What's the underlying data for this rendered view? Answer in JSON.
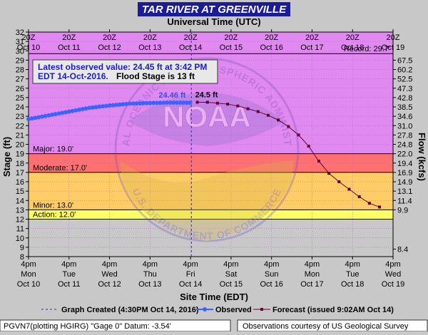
{
  "page": {
    "title": "TAR RIVER AT GREENVILLE",
    "top_axis_title": "Universal Time (UTC)",
    "bottom_axis_title": "Site Time (EDT)",
    "y_left_label": "Stage (ft)",
    "y_right_label": "Flow (kcfs)",
    "info_line1": "Latest observed value: 24.45 ft at 3:42 PM",
    "info_line2a": "EDT 14-Oct-2016.",
    "info_line2b": "Flood Stage is 13 ft",
    "record_label": "Record: 29.7'",
    "obs_label": "24.46 ft",
    "fc_label": "24.5 ft",
    "watermark_circle": "NATIONAL OCEANIC AND ATMOSPHERIC ADMINISTRATION",
    "watermark_noaa": "NOAA",
    "watermark_dept": "U.S. DEPARTMENT OF COMMERCE",
    "footer_left": "PGVN7(plotting HGIRG) \"Gage 0\" Datum: -3.54'",
    "footer_right": "Observations courtesy of US Geological Survey"
  },
  "legend": {
    "created": "Graph Created (4:30PM Oct 14, 2016)",
    "observed": "Observed",
    "forecast": "Forecast (issued 9:02AM Oct 14)"
  },
  "colors": {
    "background": "#c8c8c8",
    "title_bg": "#1c1c96",
    "plot_bg": "#e089f0",
    "major": "#ce87d2",
    "moderate": "#ff7070",
    "minor": "#ffcc66",
    "action": "#ffff66",
    "observed": "#3b63ff",
    "forecast": "#660033"
  },
  "chart_data": {
    "type": "line",
    "ylim": [
      8,
      32
    ],
    "y_ticks": [
      8,
      9,
      10,
      11,
      12,
      13,
      14,
      15,
      16,
      17,
      18,
      19,
      20,
      21,
      22,
      23,
      24,
      25,
      26,
      27,
      28,
      29,
      30,
      31,
      32
    ],
    "x_range_days": [
      "2016-10-10 16:00",
      "2016-10-19 16:00"
    ],
    "x_ticks_local": [
      {
        "t": "2016-10-10 16:00",
        "l1": "4pm",
        "l2": "Mon",
        "l3": "Oct 10"
      },
      {
        "t": "2016-10-11 16:00",
        "l1": "4pm",
        "l2": "Tue",
        "l3": "Oct 11"
      },
      {
        "t": "2016-10-12 16:00",
        "l1": "4pm",
        "l2": "Wed",
        "l3": "Oct 12"
      },
      {
        "t": "2016-10-13 16:00",
        "l1": "4pm",
        "l2": "Thu",
        "l3": "Oct 13"
      },
      {
        "t": "2016-10-14 16:00",
        "l1": "4pm",
        "l2": "Fri",
        "l3": "Oct 14"
      },
      {
        "t": "2016-10-15 16:00",
        "l1": "4pm",
        "l2": "Sat",
        "l3": "Oct 15"
      },
      {
        "t": "2016-10-16 16:00",
        "l1": "4pm",
        "l2": "Sun",
        "l3": "Oct 16"
      },
      {
        "t": "2016-10-17 16:00",
        "l1": "4pm",
        "l2": "Mon",
        "l3": "Oct 17"
      },
      {
        "t": "2016-10-18 16:00",
        "l1": "4pm",
        "l2": "Tue",
        "l3": "Oct 18"
      },
      {
        "t": "2016-10-19 16:00",
        "l1": "4pm",
        "l2": "Wed",
        "l3": "Oct 19"
      }
    ],
    "x_ticks_utc": [
      {
        "t": "2016-10-10 16:00",
        "l1": "20Z",
        "l2": "Oct 10"
      },
      {
        "t": "2016-10-11 16:00",
        "l1": "20Z",
        "l2": "Oct 11"
      },
      {
        "t": "2016-10-12 16:00",
        "l1": "20Z",
        "l2": "Oct 12"
      },
      {
        "t": "2016-10-13 16:00",
        "l1": "20Z",
        "l2": "Oct 13"
      },
      {
        "t": "2016-10-14 16:00",
        "l1": "20Z",
        "l2": "Oct 14"
      },
      {
        "t": "2016-10-15 16:00",
        "l1": "20Z",
        "l2": "Oct 15"
      },
      {
        "t": "2016-10-16 16:00",
        "l1": "20Z",
        "l2": "Oct 16"
      },
      {
        "t": "2016-10-17 16:00",
        "l1": "20Z",
        "l2": "Oct 17"
      },
      {
        "t": "2016-10-18 16:00",
        "l1": "20Z",
        "l2": "Oct 18"
      },
      {
        "t": "2016-10-19 16:00",
        "l1": "20Z",
        "l2": "Oct 19"
      }
    ],
    "flow_ticks": [
      {
        "stage": 8.8,
        "label": "8.4"
      },
      {
        "stage": 13,
        "label": "9.9"
      },
      {
        "stage": 14,
        "label": "11.4"
      },
      {
        "stage": 15,
        "label": "13.1"
      },
      {
        "stage": 16,
        "label": "14.9"
      },
      {
        "stage": 17,
        "label": "16.9"
      },
      {
        "stage": 18,
        "label": "19.4"
      },
      {
        "stage": 19,
        "label": "22.0"
      },
      {
        "stage": 20,
        "label": "24.8"
      },
      {
        "stage": 21,
        "label": "27.8"
      },
      {
        "stage": 22,
        "label": "31.0"
      },
      {
        "stage": 23,
        "label": "34.6"
      },
      {
        "stage": 24,
        "label": "38.5"
      },
      {
        "stage": 25,
        "label": "42.8"
      },
      {
        "stage": 26,
        "label": "47.3"
      },
      {
        "stage": 27,
        "label": "52.5"
      },
      {
        "stage": 28,
        "label": "60.2"
      },
      {
        "stage": 29,
        "label": "67.5"
      }
    ],
    "flood_categories": [
      {
        "name": "Action",
        "label": "Action: 12.0'",
        "from": 12,
        "to": 13
      },
      {
        "name": "Minor",
        "label": "Minor: 13.0'",
        "from": 13,
        "to": 17
      },
      {
        "name": "Moderate",
        "label": "Moderate: 17.0'",
        "from": 17,
        "to": 19
      },
      {
        "name": "Major",
        "label": "Major: 19.0'",
        "from": 19,
        "to": 32
      }
    ],
    "record_stage": 29.7,
    "graph_created": "2016-10-14 16:30",
    "observed": {
      "x": [
        "2016-10-10 16:00",
        "2016-10-11 04:00",
        "2016-10-11 16:00",
        "2016-10-12 04:00",
        "2016-10-12 16:00",
        "2016-10-13 04:00",
        "2016-10-13 16:00",
        "2016-10-14 04:00",
        "2016-10-14 15:42"
      ],
      "y": [
        22.7,
        23.1,
        23.5,
        23.9,
        24.15,
        24.35,
        24.42,
        24.46,
        24.45
      ]
    },
    "forecast": {
      "x": [
        "2016-10-14 20:00",
        "2016-10-15 02:00",
        "2016-10-15 08:00",
        "2016-10-15 14:00",
        "2016-10-15 20:00",
        "2016-10-16 02:00",
        "2016-10-16 08:00",
        "2016-10-16 14:00",
        "2016-10-16 20:00",
        "2016-10-17 02:00",
        "2016-10-17 08:00",
        "2016-10-17 14:00",
        "2016-10-17 20:00",
        "2016-10-18 02:00",
        "2016-10-18 08:00",
        "2016-10-18 14:00",
        "2016-10-18 20:00",
        "2016-10-19 02:00",
        "2016-10-19 08:00"
      ],
      "y": [
        24.5,
        24.5,
        24.4,
        24.3,
        24.1,
        23.8,
        23.5,
        23.1,
        22.6,
        21.9,
        21.0,
        19.8,
        18.2,
        16.9,
        16.0,
        15.2,
        14.4,
        13.7,
        13.3
      ]
    }
  }
}
